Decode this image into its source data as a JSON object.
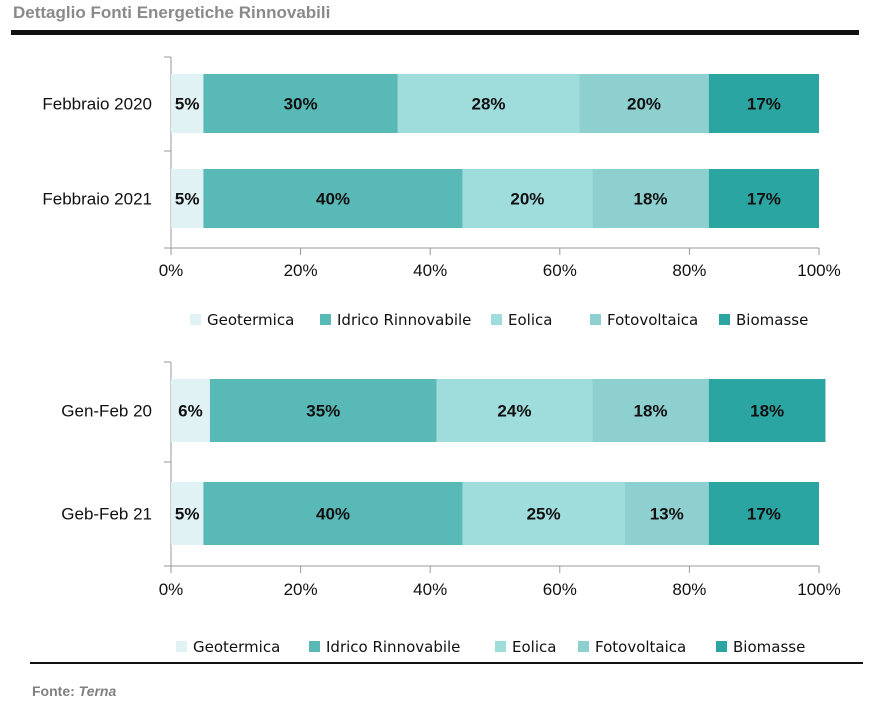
{
  "header": {
    "title": "Dettaglio Fonti Energetiche Rinnovabili"
  },
  "footer": {
    "source_label": "Fonte:",
    "source_value": "Terna"
  },
  "colors": {
    "Geotermica": "#e1f2f4",
    "Idrico Rinnovabile": "#58b9b7",
    "Eolica": "#9fdcdc",
    "Fotovoltaica": "#8ecfcf",
    "Biomasse": "#2aa5a2"
  },
  "chart_data": [
    {
      "type": "bar",
      "orientation": "horizontal-stacked-100",
      "categories": [
        "Febbraio 2020",
        "Febbraio 2021"
      ],
      "series": [
        {
          "name": "Geotermica",
          "values": [
            5,
            5
          ]
        },
        {
          "name": "Idrico Rinnovabile",
          "values": [
            30,
            40
          ]
        },
        {
          "name": "Eolica",
          "values": [
            28,
            20
          ]
        },
        {
          "name": "Fotovoltaica",
          "values": [
            20,
            18
          ]
        },
        {
          "name": "Biomasse",
          "values": [
            17,
            17
          ]
        }
      ],
      "x_ticks": [
        "0%",
        "20%",
        "40%",
        "60%",
        "80%",
        "100%"
      ],
      "xlim": [
        0,
        100
      ],
      "legend_position": "bottom",
      "grid": false
    },
    {
      "type": "bar",
      "orientation": "horizontal-stacked-100",
      "categories": [
        "Gen-Feb 20",
        "Geb-Feb 21"
      ],
      "series": [
        {
          "name": "Geotermica",
          "values": [
            6,
            5
          ]
        },
        {
          "name": "Idrico Rinnovabile",
          "values": [
            35,
            40
          ]
        },
        {
          "name": "Eolica",
          "values": [
            24,
            25
          ]
        },
        {
          "name": "Fotovoltaica",
          "values": [
            18,
            13
          ]
        },
        {
          "name": "Biomasse",
          "values": [
            18,
            17
          ]
        }
      ],
      "x_ticks": [
        "0%",
        "20%",
        "40%",
        "60%",
        "80%",
        "100%"
      ],
      "xlim": [
        0,
        100
      ],
      "legend_position": "bottom",
      "grid": false
    }
  ]
}
